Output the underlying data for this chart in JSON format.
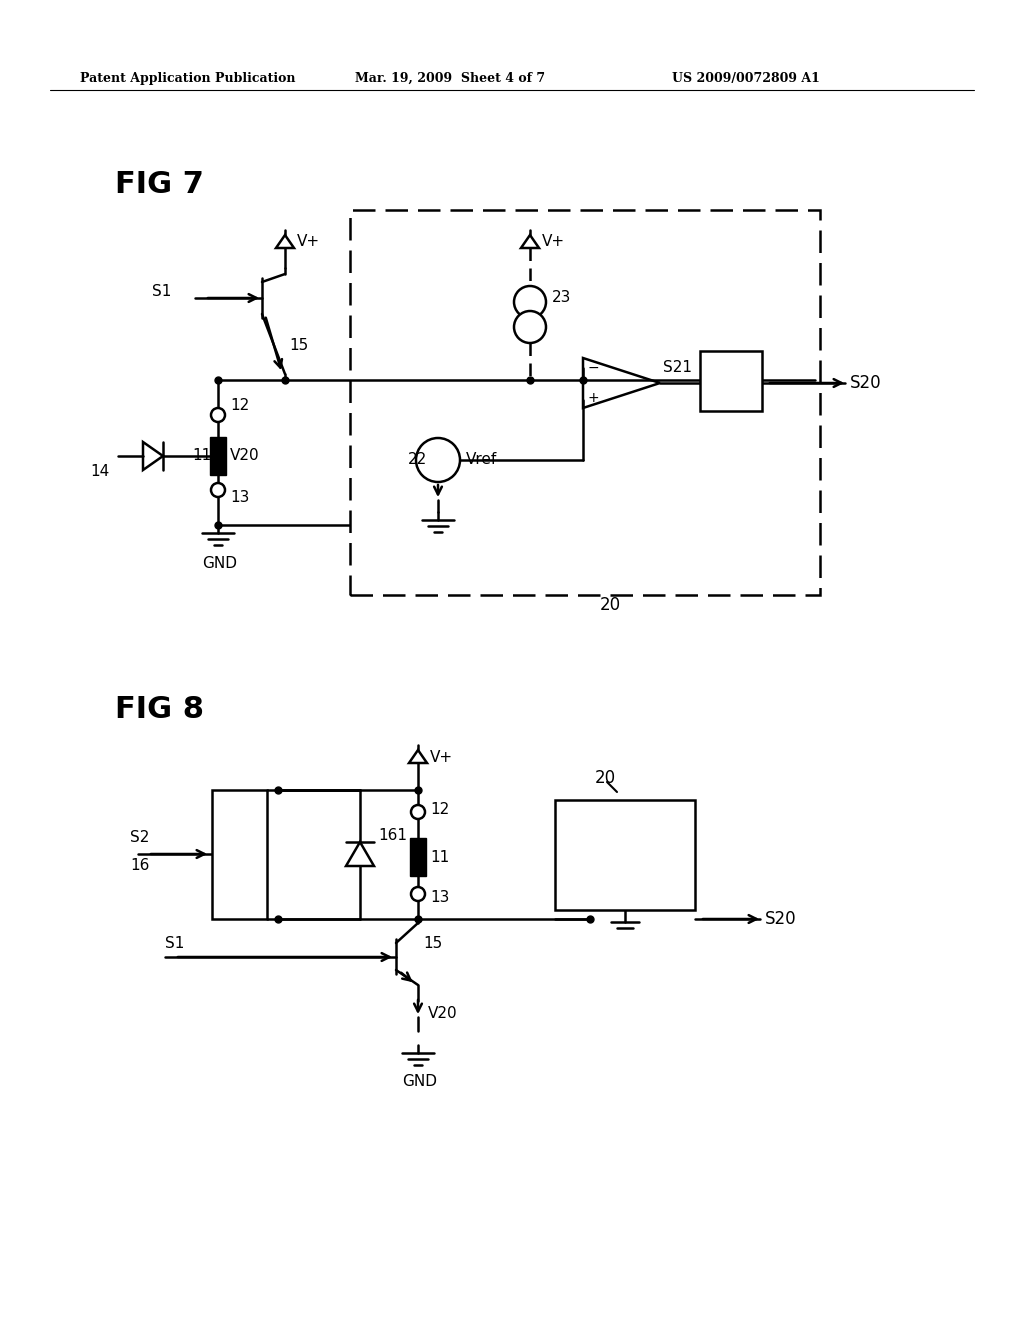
{
  "bg_color": "#ffffff",
  "header_left": "Patent Application Publication",
  "header_mid": "Mar. 19, 2009  Sheet 4 of 7",
  "header_right": "US 2009/0072809 A1"
}
